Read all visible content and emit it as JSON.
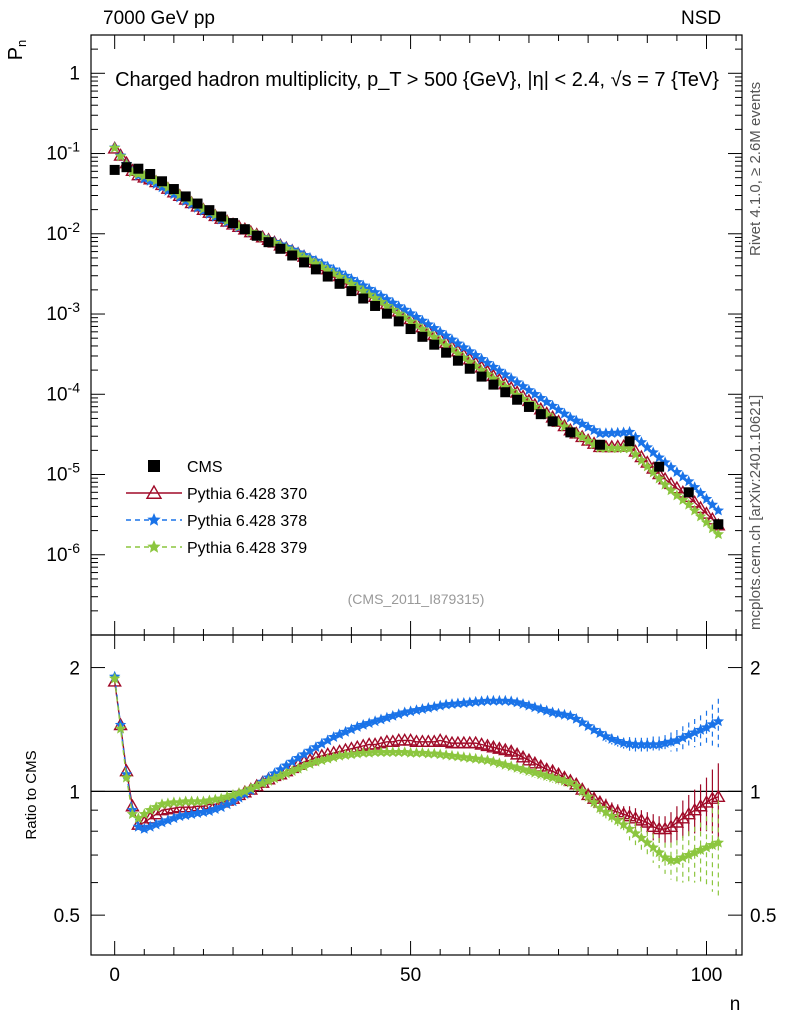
{
  "header": {
    "left": "7000 GeV pp",
    "right": "NSD"
  },
  "side_labels": {
    "rivet": "Rivet 4.1.0, ≥ 2.6M events",
    "mcplots": "mcplots.cern.ch [arXiv:2401.10621]"
  },
  "chart_data": {
    "type": "scatter",
    "title": "Charged hadron multiplicity, p_T > 500 {GeV}, |η| < 2.4, √s = 7 {TeV}",
    "watermark": "(CMS_2011_I879315)",
    "xlabel": "n",
    "xlim": [
      -4,
      106
    ],
    "x_ticks": [
      0,
      50,
      100
    ],
    "upper": {
      "ylabel": "P_n",
      "yscale": "log",
      "ylim": [
        1e-07,
        3
      ],
      "y_ticks": [
        {
          "value": 1,
          "label": "1"
        },
        {
          "value": 0.1,
          "label": "10^-1"
        },
        {
          "value": 0.01,
          "label": "10^-2"
        },
        {
          "value": 0.001,
          "label": "10^-3"
        },
        {
          "value": 0.0001,
          "label": "10^-4"
        },
        {
          "value": 1e-05,
          "label": "10^-5"
        },
        {
          "value": 1e-06,
          "label": "10^-6"
        }
      ]
    },
    "lower": {
      "ylabel": "Ratio to CMS",
      "yscale": "log",
      "ylim": [
        0.4,
        2.4
      ],
      "y_ticks": [
        {
          "value": 0.5,
          "label": "0.5"
        },
        {
          "value": 1,
          "label": "1"
        },
        {
          "value": 2,
          "label": "2"
        }
      ],
      "reference_line": 1
    },
    "legend_position": "lower-left",
    "series": [
      {
        "name": "CMS",
        "color": "#000000",
        "marker": "square",
        "line": "none",
        "x": [
          0,
          2,
          4,
          6,
          8,
          10,
          12,
          14,
          16,
          18,
          20,
          22,
          24,
          26,
          28,
          30,
          32,
          34,
          36,
          38,
          40,
          42,
          44,
          46,
          48,
          50,
          52,
          54,
          56,
          58,
          60,
          62,
          64,
          66,
          68,
          70,
          72,
          74,
          77,
          82,
          87,
          92,
          97,
          102
        ],
        "y": [
          0.0625,
          0.0676,
          0.0647,
          0.0556,
          0.0451,
          0.0361,
          0.0292,
          0.0238,
          0.0197,
          0.0164,
          0.0136,
          0.0114,
          0.00945,
          0.00786,
          0.0065,
          0.00536,
          0.0044,
          0.0036,
          0.00293,
          0.00238,
          0.00193,
          0.00156,
          0.00126,
          0.00101,
          0.00081,
          0.00065,
          0.00052,
          0.000415,
          0.00033,
          0.000262,
          0.000208,
          0.000166,
          0.000132,
          0.000106,
          8.55e-05,
          6.95e-05,
          5.65e-05,
          4.6e-05,
          3.35e-05,
          2.35e-05,
          2.6e-05,
          1.25e-05,
          6e-06,
          2.4e-06
        ]
      },
      {
        "name": "Pythia 6.428 370",
        "color": "#a00a28",
        "marker": "open-triangle",
        "line": "solid",
        "ratio_marker": "open-triangle",
        "x": [
          0,
          1,
          2,
          3,
          4,
          5,
          6,
          7,
          8,
          9,
          10,
          11,
          12,
          13,
          14,
          15,
          16,
          17,
          18,
          19,
          20,
          21,
          22,
          23,
          24,
          25,
          26,
          27,
          28,
          29,
          30,
          31,
          32,
          33,
          34,
          35,
          36,
          37,
          38,
          39,
          40,
          41,
          42,
          43,
          44,
          45,
          46,
          47,
          48,
          49,
          50,
          51,
          52,
          53,
          54,
          55,
          56,
          57,
          58,
          59,
          60,
          61,
          62,
          63,
          64,
          65,
          66,
          67,
          68,
          69,
          70,
          71,
          72,
          73,
          74,
          75,
          76,
          77,
          78,
          79,
          80,
          81,
          82,
          83,
          84,
          85,
          86,
          87,
          88,
          89,
          90,
          91,
          92,
          93,
          94,
          95,
          96,
          97,
          98,
          99,
          100,
          101,
          102
        ],
        "ratio": [
          1.85,
          1.45,
          1.12,
          0.92,
          0.83,
          0.84,
          0.86,
          0.88,
          0.9,
          0.905,
          0.91,
          0.915,
          0.915,
          0.915,
          0.92,
          0.92,
          0.93,
          0.93,
          0.94,
          0.95,
          0.96,
          0.98,
          0.995,
          1.01,
          1.03,
          1.05,
          1.07,
          1.09,
          1.1,
          1.12,
          1.14,
          1.16,
          1.18,
          1.19,
          1.21,
          1.22,
          1.23,
          1.24,
          1.25,
          1.26,
          1.27,
          1.28,
          1.29,
          1.3,
          1.3,
          1.31,
          1.32,
          1.32,
          1.33,
          1.33,
          1.33,
          1.32,
          1.32,
          1.32,
          1.32,
          1.33,
          1.32,
          1.31,
          1.31,
          1.31,
          1.31,
          1.31,
          1.3,
          1.29,
          1.28,
          1.27,
          1.26,
          1.25,
          1.23,
          1.21,
          1.19,
          1.17,
          1.15,
          1.13,
          1.12,
          1.1,
          1.08,
          1.06,
          1.04,
          1.01,
          0.98,
          0.96,
          0.94,
          0.92,
          0.9,
          0.89,
          0.88,
          0.87,
          0.86,
          0.85,
          0.84,
          0.82,
          0.81,
          0.81,
          0.82,
          0.84,
          0.86,
          0.88,
          0.9,
          0.92,
          0.94,
          0.96,
          0.97
        ],
        "ratio_errors": [
          0.01,
          0.01,
          0.01,
          0.01,
          0.01,
          0.01,
          0.01,
          0.01,
          0.01,
          0.01,
          0.01,
          0.01,
          0.01,
          0.01,
          0.01,
          0.01,
          0.01,
          0.01,
          0.01,
          0.01,
          0.01,
          0.01,
          0.01,
          0.01,
          0.01,
          0.01,
          0.01,
          0.01,
          0.01,
          0.01,
          0.01,
          0.01,
          0.01,
          0.01,
          0.01,
          0.01,
          0.01,
          0.01,
          0.01,
          0.01,
          0.01,
          0.01,
          0.01,
          0.02,
          0.02,
          0.02,
          0.02,
          0.02,
          0.02,
          0.02,
          0.02,
          0.02,
          0.02,
          0.02,
          0.02,
          0.02,
          0.02,
          0.02,
          0.02,
          0.02,
          0.02,
          0.02,
          0.02,
          0.03,
          0.03,
          0.03,
          0.03,
          0.03,
          0.03,
          0.03,
          0.03,
          0.03,
          0.03,
          0.03,
          0.03,
          0.03,
          0.03,
          0.03,
          0.03,
          0.03,
          0.03,
          0.03,
          0.03,
          0.04,
          0.04,
          0.04,
          0.04,
          0.05,
          0.05,
          0.05,
          0.05,
          0.06,
          0.06,
          0.06,
          0.07,
          0.08,
          0.09,
          0.1,
          0.11,
          0.12,
          0.14,
          0.17,
          0.2
        ]
      },
      {
        "name": "Pythia 6.428 378",
        "color": "#1a73e8",
        "marker": "star",
        "line": "dashed",
        "x": [
          0,
          1,
          2,
          3,
          4,
          5,
          6,
          7,
          8,
          9,
          10,
          11,
          12,
          13,
          14,
          15,
          16,
          17,
          18,
          19,
          20,
          21,
          22,
          23,
          24,
          25,
          26,
          27,
          28,
          29,
          30,
          31,
          32,
          33,
          34,
          35,
          36,
          37,
          38,
          39,
          40,
          41,
          42,
          43,
          44,
          45,
          46,
          47,
          48,
          49,
          50,
          51,
          52,
          53,
          54,
          55,
          56,
          57,
          58,
          59,
          60,
          61,
          62,
          63,
          64,
          65,
          66,
          67,
          68,
          69,
          70,
          71,
          72,
          73,
          74,
          75,
          76,
          77,
          78,
          79,
          80,
          81,
          82,
          83,
          84,
          85,
          86,
          87,
          88,
          89,
          90,
          91,
          92,
          93,
          94,
          95,
          96,
          97,
          98,
          99,
          100,
          101,
          102
        ],
        "ratio": [
          1.9,
          1.45,
          1.1,
          0.9,
          0.82,
          0.81,
          0.82,
          0.83,
          0.84,
          0.85,
          0.86,
          0.87,
          0.875,
          0.88,
          0.885,
          0.89,
          0.895,
          0.905,
          0.915,
          0.93,
          0.945,
          0.965,
          0.985,
          1.005,
          1.03,
          1.055,
          1.08,
          1.105,
          1.13,
          1.155,
          1.18,
          1.205,
          1.23,
          1.255,
          1.28,
          1.305,
          1.33,
          1.355,
          1.375,
          1.395,
          1.415,
          1.435,
          1.45,
          1.465,
          1.48,
          1.495,
          1.51,
          1.525,
          1.54,
          1.555,
          1.565,
          1.575,
          1.585,
          1.595,
          1.605,
          1.615,
          1.625,
          1.63,
          1.635,
          1.64,
          1.645,
          1.65,
          1.655,
          1.66,
          1.66,
          1.66,
          1.66,
          1.655,
          1.645,
          1.63,
          1.615,
          1.6,
          1.585,
          1.57,
          1.555,
          1.545,
          1.535,
          1.525,
          1.5,
          1.47,
          1.44,
          1.41,
          1.385,
          1.36,
          1.34,
          1.325,
          1.31,
          1.305,
          1.3,
          1.3,
          1.3,
          1.3,
          1.3,
          1.31,
          1.32,
          1.33,
          1.35,
          1.37,
          1.39,
          1.41,
          1.43,
          1.455,
          1.48
        ],
        "ratio_errors": [
          0.01,
          0.01,
          0.01,
          0.01,
          0.01,
          0.01,
          0.01,
          0.01,
          0.01,
          0.01,
          0.01,
          0.01,
          0.01,
          0.01,
          0.01,
          0.01,
          0.01,
          0.01,
          0.01,
          0.01,
          0.01,
          0.01,
          0.01,
          0.01,
          0.01,
          0.01,
          0.01,
          0.01,
          0.01,
          0.01,
          0.01,
          0.01,
          0.01,
          0.01,
          0.01,
          0.01,
          0.01,
          0.01,
          0.01,
          0.01,
          0.01,
          0.01,
          0.01,
          0.02,
          0.02,
          0.02,
          0.02,
          0.02,
          0.02,
          0.02,
          0.02,
          0.02,
          0.02,
          0.02,
          0.02,
          0.02,
          0.02,
          0.02,
          0.02,
          0.02,
          0.02,
          0.02,
          0.02,
          0.03,
          0.03,
          0.03,
          0.03,
          0.03,
          0.03,
          0.03,
          0.03,
          0.03,
          0.03,
          0.03,
          0.03,
          0.03,
          0.03,
          0.03,
          0.03,
          0.03,
          0.03,
          0.03,
          0.03,
          0.04,
          0.04,
          0.04,
          0.04,
          0.05,
          0.05,
          0.05,
          0.05,
          0.06,
          0.06,
          0.06,
          0.07,
          0.08,
          0.09,
          0.1,
          0.11,
          0.12,
          0.14,
          0.17,
          0.2
        ]
      },
      {
        "name": "Pythia 6.428 379",
        "color": "#8cc63f",
        "marker": "star",
        "line": "dashed",
        "x": [
          0,
          1,
          2,
          3,
          4,
          5,
          6,
          7,
          8,
          9,
          10,
          11,
          12,
          13,
          14,
          15,
          16,
          17,
          18,
          19,
          20,
          21,
          22,
          23,
          24,
          25,
          26,
          27,
          28,
          29,
          30,
          31,
          32,
          33,
          34,
          35,
          36,
          37,
          38,
          39,
          40,
          41,
          42,
          43,
          44,
          45,
          46,
          47,
          48,
          49,
          50,
          51,
          52,
          53,
          54,
          55,
          56,
          57,
          58,
          59,
          60,
          61,
          62,
          63,
          64,
          65,
          66,
          67,
          68,
          69,
          70,
          71,
          72,
          73,
          74,
          75,
          76,
          77,
          78,
          79,
          80,
          81,
          82,
          83,
          84,
          85,
          86,
          87,
          88,
          89,
          90,
          91,
          92,
          93,
          94,
          95,
          96,
          97,
          98,
          99,
          100,
          101,
          102
        ],
        "ratio": [
          1.88,
          1.42,
          1.08,
          0.88,
          0.86,
          0.88,
          0.9,
          0.915,
          0.93,
          0.935,
          0.94,
          0.94,
          0.945,
          0.945,
          0.945,
          0.945,
          0.95,
          0.955,
          0.96,
          0.97,
          0.98,
          0.99,
          1.0,
          1.015,
          1.03,
          1.045,
          1.06,
          1.075,
          1.09,
          1.105,
          1.12,
          1.135,
          1.15,
          1.165,
          1.18,
          1.19,
          1.2,
          1.21,
          1.22,
          1.225,
          1.23,
          1.235,
          1.24,
          1.24,
          1.245,
          1.245,
          1.245,
          1.245,
          1.245,
          1.245,
          1.24,
          1.24,
          1.24,
          1.235,
          1.235,
          1.23,
          1.225,
          1.22,
          1.215,
          1.21,
          1.205,
          1.2,
          1.195,
          1.19,
          1.18,
          1.17,
          1.16,
          1.15,
          1.14,
          1.13,
          1.12,
          1.11,
          1.1,
          1.09,
          1.08,
          1.07,
          1.06,
          1.05,
          1.03,
          1.0,
          0.97,
          0.94,
          0.91,
          0.89,
          0.87,
          0.85,
          0.83,
          0.81,
          0.79,
          0.77,
          0.75,
          0.73,
          0.71,
          0.69,
          0.68,
          0.68,
          0.69,
          0.7,
          0.71,
          0.72,
          0.73,
          0.74,
          0.75
        ],
        "ratio_errors": [
          0.01,
          0.01,
          0.01,
          0.01,
          0.01,
          0.01,
          0.01,
          0.01,
          0.01,
          0.01,
          0.01,
          0.01,
          0.01,
          0.01,
          0.01,
          0.01,
          0.01,
          0.01,
          0.01,
          0.01,
          0.01,
          0.01,
          0.01,
          0.01,
          0.01,
          0.01,
          0.01,
          0.01,
          0.01,
          0.01,
          0.01,
          0.01,
          0.01,
          0.01,
          0.01,
          0.01,
          0.01,
          0.01,
          0.01,
          0.01,
          0.01,
          0.01,
          0.01,
          0.02,
          0.02,
          0.02,
          0.02,
          0.02,
          0.02,
          0.02,
          0.02,
          0.02,
          0.02,
          0.02,
          0.02,
          0.02,
          0.02,
          0.02,
          0.02,
          0.02,
          0.02,
          0.02,
          0.02,
          0.03,
          0.03,
          0.03,
          0.03,
          0.03,
          0.03,
          0.03,
          0.03,
          0.03,
          0.03,
          0.03,
          0.03,
          0.03,
          0.03,
          0.03,
          0.03,
          0.03,
          0.03,
          0.03,
          0.03,
          0.04,
          0.04,
          0.04,
          0.04,
          0.05,
          0.05,
          0.05,
          0.05,
          0.06,
          0.06,
          0.06,
          0.07,
          0.08,
          0.09,
          0.1,
          0.11,
          0.12,
          0.14,
          0.17,
          0.2
        ]
      }
    ],
    "legend": [
      "CMS",
      "Pythia 6.428 370",
      "Pythia 6.428 378",
      "Pythia 6.428 379"
    ]
  }
}
